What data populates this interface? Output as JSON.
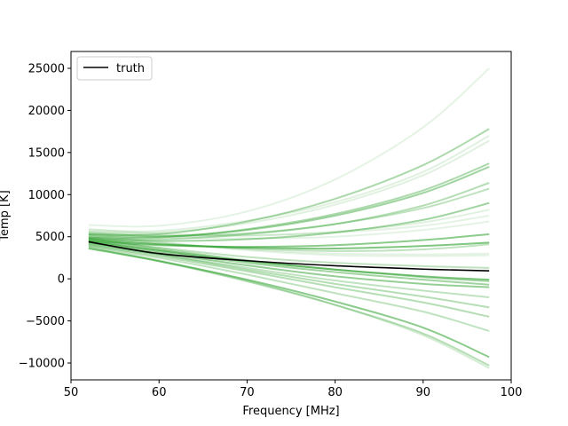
{
  "chart_data": {
    "type": "line",
    "title": "",
    "xlabel": "Frequency [MHz]",
    "ylabel": "Temp [K]",
    "xlim": [
      50,
      100
    ],
    "ylim": [
      -12000,
      27000
    ],
    "xticks": [
      50,
      60,
      70,
      80,
      90,
      100
    ],
    "yticks": [
      -10000,
      -5000,
      0,
      5000,
      10000,
      15000,
      20000,
      25000
    ],
    "xtick_labels": [
      "50",
      "60",
      "70",
      "80",
      "90",
      "100"
    ],
    "ytick_labels": [
      "−10000",
      "−5000",
      "0",
      "5000",
      "10000",
      "15000",
      "20000",
      "25000"
    ],
    "grid": false,
    "legend": {
      "position": "top-left",
      "entries": [
        "truth"
      ]
    },
    "truth": {
      "name": "truth",
      "color": "#000000",
      "x": [
        52,
        60,
        70,
        80,
        90,
        97.5
      ],
      "y": [
        4400,
        3000,
        2150,
        1550,
        1150,
        950
      ]
    },
    "samples": {
      "color": "#2ca02c",
      "x": [
        52,
        60,
        70,
        80,
        90,
        97.5
      ],
      "series": [
        {
          "y": [
            6400,
            6300,
            8000,
            11800,
            18000,
            25000
          ],
          "alpha": 0.12
        },
        {
          "y": [
            5300,
            5300,
            6800,
            9500,
            13500,
            17800
          ],
          "alpha": 0.4
        },
        {
          "y": [
            5800,
            5700,
            6900,
            9100,
            12700,
            17000
          ],
          "alpha": 0.15
        },
        {
          "y": [
            5600,
            5500,
            6600,
            8800,
            12300,
            16400
          ],
          "alpha": 0.15
        },
        {
          "y": [
            5000,
            4900,
            5900,
            7700,
            10500,
            13700
          ],
          "alpha": 0.4
        },
        {
          "y": [
            5200,
            5000,
            5800,
            7500,
            10200,
            13300
          ],
          "alpha": 0.45
        },
        {
          "y": [
            4900,
            4700,
            5300,
            6500,
            8700,
            11400
          ],
          "alpha": 0.35
        },
        {
          "y": [
            5400,
            5100,
            5400,
            6500,
            8400,
            10700
          ],
          "alpha": 0.3
        },
        {
          "y": [
            4800,
            4500,
            4700,
            5500,
            7000,
            9000
          ],
          "alpha": 0.45
        },
        {
          "y": [
            5600,
            5200,
            5100,
            5600,
            6700,
            8200
          ],
          "alpha": 0.15
        },
        {
          "y": [
            5900,
            5400,
            5200,
            5500,
            6300,
            7500
          ],
          "alpha": 0.12
        },
        {
          "y": [
            5500,
            5000,
            4800,
            5000,
            5800,
            6800
          ],
          "alpha": 0.12
        },
        {
          "y": [
            4500,
            4000,
            3800,
            4000,
            4600,
            5300
          ],
          "alpha": 0.55
        },
        {
          "y": [
            4700,
            4100,
            3700,
            3600,
            3900,
            4300
          ],
          "alpha": 0.6
        },
        {
          "y": [
            4900,
            4200,
            3600,
            3300,
            3500,
            4100
          ],
          "alpha": 0.3
        },
        {
          "y": [
            5100,
            4300,
            3500,
            3000,
            2900,
            3000
          ],
          "alpha": 0.12
        },
        {
          "y": [
            5300,
            4400,
            3400,
            2800,
            2700,
            2800
          ],
          "alpha": 0.12
        },
        {
          "y": [
            4600,
            3700,
            2600,
            1900,
            1500,
            1300
          ],
          "alpha": 0.3
        },
        {
          "y": [
            4500,
            3400,
            2100,
            1100,
            300,
            -100
          ],
          "alpha": 0.6
        },
        {
          "y": [
            4800,
            3600,
            2200,
            1100,
            200,
            -300
          ],
          "alpha": 0.4
        },
        {
          "y": [
            4400,
            3300,
            1900,
            800,
            -100,
            -700
          ],
          "alpha": 0.45
        },
        {
          "y": [
            4300,
            3100,
            1600,
            300,
            -600,
            -1000
          ],
          "alpha": 0.5
        },
        {
          "y": [
            4100,
            2900,
            1300,
            -200,
            -1400,
            -2200
          ],
          "alpha": 0.3
        },
        {
          "y": [
            4200,
            2900,
            1100,
            -600,
            -2100,
            -3400
          ],
          "alpha": 0.35
        },
        {
          "y": [
            4000,
            2700,
            900,
            -1000,
            -2800,
            -4500
          ],
          "alpha": 0.35
        },
        {
          "y": [
            3900,
            2500,
            500,
            -1700,
            -3900,
            -6200
          ],
          "alpha": 0.3
        },
        {
          "y": [
            3600,
            2100,
            -100,
            -2700,
            -5800,
            -9300
          ],
          "alpha": 0.55
        },
        {
          "y": [
            3700,
            2100,
            -300,
            -3100,
            -6500,
            -10300
          ],
          "alpha": 0.35
        },
        {
          "y": [
            3800,
            2200,
            -200,
            -3100,
            -6700,
            -10600
          ],
          "alpha": 0.2
        }
      ]
    }
  }
}
